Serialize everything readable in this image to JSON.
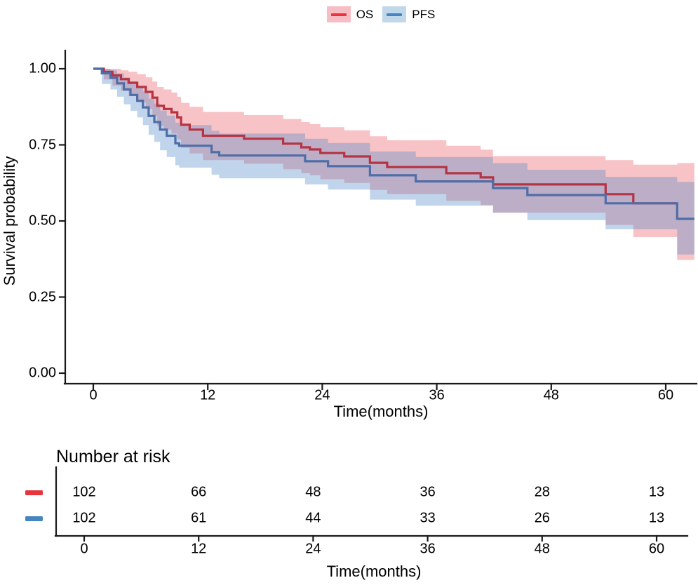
{
  "legend": {
    "items": [
      {
        "id": "os",
        "label": "OS"
      },
      {
        "id": "pfs",
        "label": "PFS"
      }
    ]
  },
  "main_plot": {
    "y_axis": {
      "title": "Survival probability",
      "ticks": [
        "1.00",
        "0.75",
        "0.50",
        "0.25",
        "0.00"
      ]
    },
    "x_axis": {
      "title": "Time(months)",
      "ticks": [
        "0",
        "12",
        "24",
        "36",
        "48",
        "60"
      ]
    }
  },
  "risk_table": {
    "title": "Number at risk",
    "x_axis": {
      "title": "Time(months)",
      "ticks": [
        "0",
        "12",
        "24",
        "36",
        "48",
        "60"
      ]
    },
    "rows": [
      {
        "key": "os",
        "series": "OS",
        "counts": [
          "102",
          "66",
          "48",
          "36",
          "28",
          "13"
        ]
      },
      {
        "key": "pfs",
        "series": "PFS",
        "counts": [
          "102",
          "61",
          "44",
          "33",
          "26",
          "13"
        ]
      }
    ]
  },
  "colors": {
    "os": {
      "line": "#b63343",
      "key": "#e8353b",
      "band": "rgba(230,57,70,0.30)",
      "key_bg": "#f6bdc4"
    },
    "pfs": {
      "line": "#4f6da8",
      "key": "#4585c2",
      "band": "rgba(74,134,198,0.35)",
      "key_bg": "#c0d8ea"
    },
    "axis": "#1a1a1a",
    "text": "#000000"
  },
  "chart_data": {
    "type": "line",
    "subtype": "kaplan_meier_step",
    "title": "",
    "xlabel": "Time(months)",
    "ylabel": "Survival probability",
    "xlim": [
      0,
      63
    ],
    "ylim": [
      0,
      1
    ],
    "x_tick_values": [
      0,
      12,
      24,
      36,
      48,
      60
    ],
    "y_tick_values": [
      1.0,
      0.75,
      0.5,
      0.25,
      0.0
    ],
    "grid": false,
    "legend_position": "top",
    "confidence_bands": true,
    "series": [
      {
        "name": "OS",
        "steps": [
          [
            0,
            1.0
          ],
          [
            1.1,
            0.99
          ],
          [
            2.0,
            0.978
          ],
          [
            2.9,
            0.966
          ],
          [
            3.7,
            0.954
          ],
          [
            4.6,
            0.94
          ],
          [
            5.5,
            0.924
          ],
          [
            6.2,
            0.905
          ],
          [
            6.7,
            0.878
          ],
          [
            7.4,
            0.868
          ],
          [
            8.2,
            0.857
          ],
          [
            8.8,
            0.84
          ],
          [
            9.2,
            0.816
          ],
          [
            10.1,
            0.8
          ],
          [
            11.5,
            0.78
          ],
          [
            15.8,
            0.77
          ],
          [
            19.9,
            0.754
          ],
          [
            21.8,
            0.742
          ],
          [
            22.7,
            0.735
          ],
          [
            23.8,
            0.723
          ],
          [
            26.3,
            0.712
          ],
          [
            29.0,
            0.691
          ],
          [
            30.8,
            0.677
          ],
          [
            37.0,
            0.657
          ],
          [
            40.6,
            0.643
          ],
          [
            41.9,
            0.62
          ],
          [
            53.7,
            0.588
          ],
          [
            56.6,
            0.558
          ],
          [
            61.2,
            0.558
          ]
        ],
        "ci": [
          [
            0,
            1,
            1
          ],
          [
            1.1,
            0.965,
            1.0
          ],
          [
            2.0,
            0.945,
            1.0
          ],
          [
            2.9,
            0.928,
            0.995
          ],
          [
            3.7,
            0.91,
            0.99
          ],
          [
            4.6,
            0.89,
            0.982
          ],
          [
            5.5,
            0.868,
            0.972
          ],
          [
            6.2,
            0.845,
            0.958
          ],
          [
            6.7,
            0.812,
            0.94
          ],
          [
            7.4,
            0.8,
            0.932
          ],
          [
            8.2,
            0.787,
            0.922
          ],
          [
            8.8,
            0.768,
            0.908
          ],
          [
            9.2,
            0.74,
            0.888
          ],
          [
            10.1,
            0.722,
            0.875
          ],
          [
            11.5,
            0.7,
            0.858
          ],
          [
            15.8,
            0.688,
            0.848
          ],
          [
            19.9,
            0.67,
            0.835
          ],
          [
            21.8,
            0.657,
            0.825
          ],
          [
            22.7,
            0.65,
            0.818
          ],
          [
            23.8,
            0.637,
            0.808
          ],
          [
            26.3,
            0.625,
            0.798
          ],
          [
            29.0,
            0.602,
            0.778
          ],
          [
            30.8,
            0.588,
            0.765
          ],
          [
            37.0,
            0.566,
            0.747
          ],
          [
            40.6,
            0.552,
            0.734
          ],
          [
            41.9,
            0.527,
            0.713
          ],
          [
            53.7,
            0.487,
            0.7
          ],
          [
            56.6,
            0.447,
            0.685
          ],
          [
            61.2,
            0.372,
            0.69
          ],
          [
            63.0,
            0.372,
            0.69
          ]
        ],
        "number_at_risk": [
          102,
          66,
          48,
          36,
          28,
          13
        ]
      },
      {
        "name": "PFS",
        "steps": [
          [
            0,
            1.0
          ],
          [
            0.9,
            0.985
          ],
          [
            1.8,
            0.97
          ],
          [
            2.5,
            0.952
          ],
          [
            3.2,
            0.932
          ],
          [
            3.9,
            0.914
          ],
          [
            4.6,
            0.895
          ],
          [
            5.2,
            0.873
          ],
          [
            5.8,
            0.845
          ],
          [
            6.4,
            0.825
          ],
          [
            7.0,
            0.8
          ],
          [
            7.7,
            0.78
          ],
          [
            8.6,
            0.755
          ],
          [
            9.0,
            0.747
          ],
          [
            12.4,
            0.726
          ],
          [
            13.2,
            0.715
          ],
          [
            22.2,
            0.696
          ],
          [
            24.6,
            0.68
          ],
          [
            29.0,
            0.65
          ],
          [
            33.8,
            0.63
          ],
          [
            41.9,
            0.608
          ],
          [
            45.5,
            0.585
          ],
          [
            53.7,
            0.558
          ],
          [
            61.2,
            0.507
          ],
          [
            63.0,
            0.507
          ]
        ],
        "ci": [
          [
            0,
            1,
            1
          ],
          [
            0.9,
            0.95,
            1.0
          ],
          [
            1.8,
            0.932,
            0.995
          ],
          [
            2.5,
            0.908,
            0.985
          ],
          [
            3.2,
            0.883,
            0.972
          ],
          [
            3.9,
            0.862,
            0.958
          ],
          [
            4.6,
            0.84,
            0.944
          ],
          [
            5.2,
            0.815,
            0.926
          ],
          [
            5.8,
            0.783,
            0.902
          ],
          [
            6.4,
            0.76,
            0.886
          ],
          [
            7.0,
            0.732,
            0.863
          ],
          [
            7.7,
            0.71,
            0.846
          ],
          [
            8.6,
            0.683,
            0.823
          ],
          [
            9.0,
            0.675,
            0.815
          ],
          [
            12.4,
            0.652,
            0.796
          ],
          [
            13.2,
            0.64,
            0.787
          ],
          [
            22.2,
            0.62,
            0.77
          ],
          [
            24.6,
            0.603,
            0.756
          ],
          [
            29.0,
            0.57,
            0.728
          ],
          [
            33.8,
            0.55,
            0.71
          ],
          [
            41.9,
            0.527,
            0.69
          ],
          [
            45.5,
            0.503,
            0.668
          ],
          [
            53.7,
            0.473,
            0.645
          ],
          [
            61.2,
            0.39,
            0.628
          ],
          [
            63.0,
            0.39,
            0.628
          ]
        ],
        "number_at_risk": [
          102,
          61,
          44,
          33,
          26,
          13
        ]
      }
    ]
  }
}
